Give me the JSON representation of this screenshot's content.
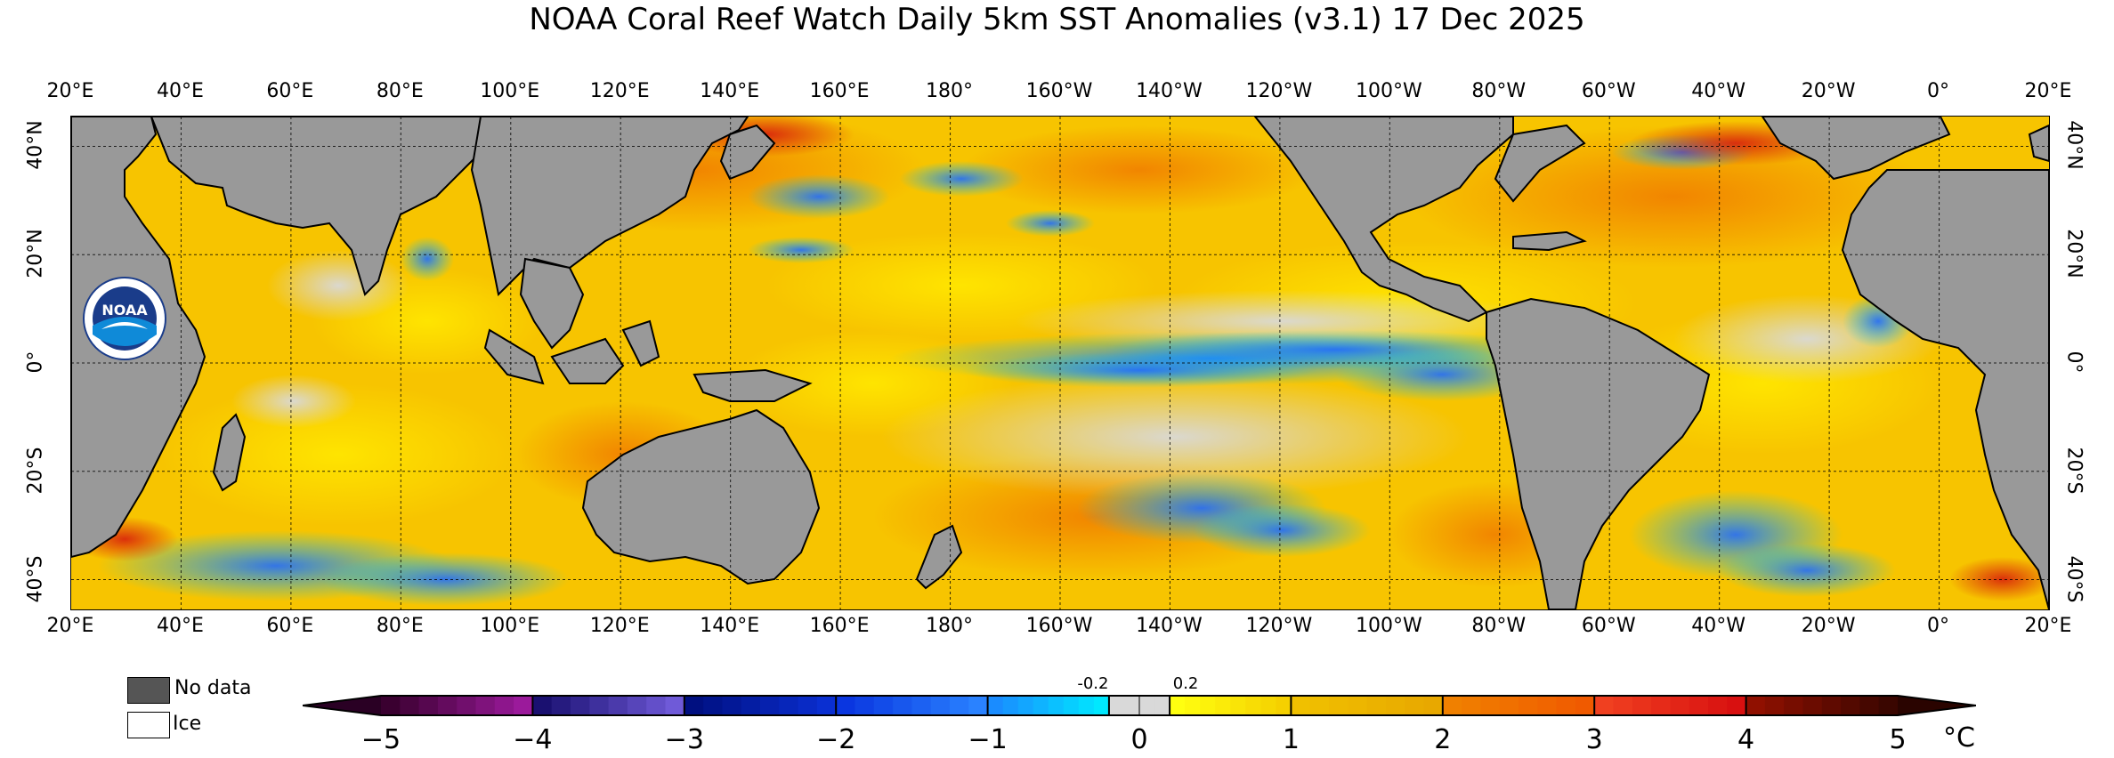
{
  "title": "NOAA Coral Reef Watch Daily 5km SST Anomalies  (v3.1)   17 Dec 2025",
  "lon_labels": [
    "20°E",
    "40°E",
    "60°E",
    "80°E",
    "100°E",
    "120°E",
    "140°E",
    "160°E",
    "180°",
    "160°W",
    "140°W",
    "120°W",
    "100°W",
    "80°W",
    "60°W",
    "40°W",
    "20°W",
    "0°",
    "20°E"
  ],
  "lat_labels": [
    "40°N",
    "20°N",
    "0°",
    "20°S",
    "40°S"
  ],
  "legend": {
    "no_data": "No data",
    "ice": "Ice"
  },
  "colorbar": {
    "ticks": [
      "−5",
      "−4",
      "−3",
      "−2",
      "−1",
      "0",
      "1",
      "2",
      "3",
      "4",
      "5"
    ],
    "small_ticks": [
      "-0.2",
      "0.2"
    ],
    "unit": "°C",
    "range": [
      -5,
      5
    ],
    "colors": {
      "land": "#999999",
      "neutral": "#d9d9d9",
      "warm_light": "#ffe600",
      "warm_mid": "#f5b800",
      "warm_orange": "#f57c00",
      "warm_red": "#e53317",
      "cool_light": "#00c8ff",
      "cool_mid": "#1e6cff",
      "cool_dark": "#0a2fd1"
    }
  },
  "logo": {
    "text": "NOAA",
    "icon": "noaa-logo-icon"
  }
}
